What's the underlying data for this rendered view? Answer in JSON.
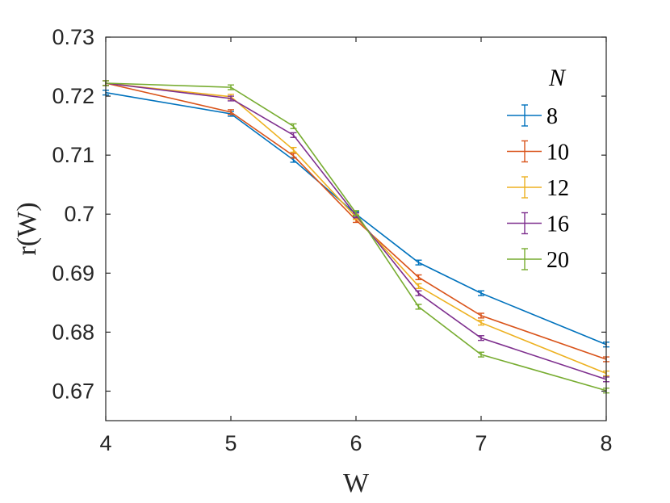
{
  "chart_data": {
    "type": "line",
    "xlabel": "W",
    "ylabel": "r(W)",
    "xlim": [
      4,
      8
    ],
    "ylim": [
      0.665,
      0.73
    ],
    "xticks": [
      4,
      5,
      6,
      7,
      8
    ],
    "xtick_labels": [
      "4",
      "5",
      "6",
      "7",
      "8"
    ],
    "yticks": [
      0.67,
      0.68,
      0.69,
      0.7,
      0.71,
      0.72,
      0.73
    ],
    "ytick_labels": [
      "0.67",
      "0.68",
      "0.69",
      "0.7",
      "0.71",
      "0.72",
      "0.73"
    ],
    "grid": false,
    "legend_title": "N",
    "legend_position": "top-right",
    "x": [
      4,
      5,
      5.5,
      6,
      6.5,
      7,
      8
    ],
    "series": [
      {
        "name": "8",
        "color": "#0072BD",
        "values": [
          0.7206,
          0.717,
          0.7092,
          0.7,
          0.6918,
          0.6866,
          0.6779
        ],
        "errors": [
          0.0004,
          0.0004,
          0.0004,
          0.0004,
          0.0004,
          0.0004,
          0.0004
        ]
      },
      {
        "name": "10",
        "color": "#D95319",
        "values": [
          0.7222,
          0.7173,
          0.7099,
          0.699,
          0.6893,
          0.6828,
          0.6754
        ],
        "errors": [
          0.0004,
          0.0004,
          0.0004,
          0.0004,
          0.0004,
          0.0004,
          0.0004
        ]
      },
      {
        "name": "12",
        "color": "#EDB120",
        "values": [
          0.7222,
          0.7199,
          0.7109,
          0.6995,
          0.6878,
          0.6816,
          0.673
        ],
        "errors": [
          0.0004,
          0.0004,
          0.0004,
          0.0004,
          0.0004,
          0.0004,
          0.0004
        ]
      },
      {
        "name": "16",
        "color": "#7E2F8E",
        "values": [
          0.7222,
          0.7196,
          0.7134,
          0.6998,
          0.6866,
          0.679,
          0.672
        ],
        "errors": [
          0.0004,
          0.0004,
          0.0004,
          0.0004,
          0.0004,
          0.0004,
          0.0004
        ]
      },
      {
        "name": "20",
        "color": "#77AC30",
        "values": [
          0.7222,
          0.7215,
          0.7149,
          0.7002,
          0.6843,
          0.6762,
          0.6701
        ],
        "errors": [
          0.0004,
          0.0004,
          0.0004,
          0.0004,
          0.0004,
          0.0004,
          0.0004
        ]
      }
    ]
  }
}
